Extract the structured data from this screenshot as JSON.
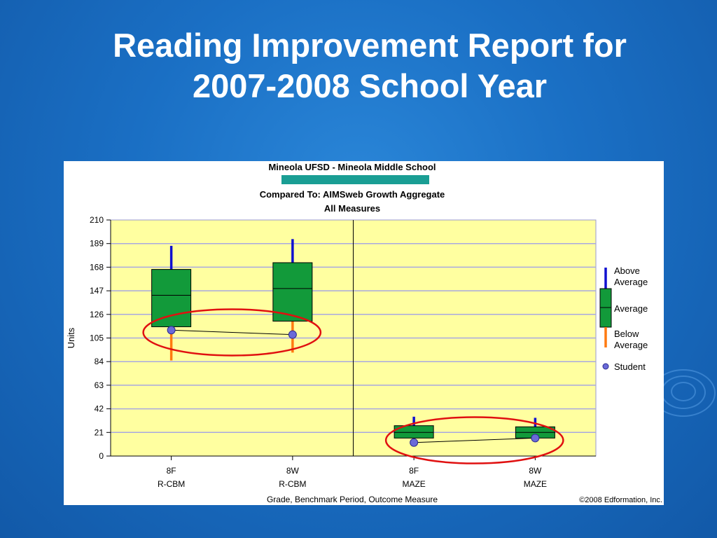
{
  "slide": {
    "title_line1": "Reading Improvement Report for",
    "title_line2": "2007-2008 School Year"
  },
  "chart_data": {
    "type": "boxplot",
    "header": {
      "line1": "Mineola UFSD - Mineola Middle School",
      "line2": "Compared To: AIMSweb Growth Aggregate",
      "line3": "All Measures"
    },
    "highlight_bar_color": "#1a9e94",
    "ylabel": "Units",
    "xlabel": "Grade, Benchmark Period, Outcome Measure",
    "ylim": [
      0,
      210
    ],
    "yticks": [
      0,
      21,
      42,
      63,
      84,
      105,
      126,
      147,
      168,
      189,
      210
    ],
    "grid": true,
    "plot_background": "#ffffa0",
    "copyright": "©2008 Edformation, Inc.",
    "categories": [
      {
        "line1": "8F",
        "line2": "R-CBM"
      },
      {
        "line1": "8W",
        "line2": "R-CBM"
      },
      {
        "line1": "8F",
        "line2": "MAZE"
      },
      {
        "line1": "8W",
        "line2": "MAZE"
      }
    ],
    "boxes": [
      {
        "whisker_low": 85,
        "box_low": 115,
        "median": 143,
        "box_high": 166,
        "whisker_high": 187,
        "student": 112
      },
      {
        "whisker_low": 92,
        "box_low": 120,
        "median": 149,
        "box_high": 172,
        "whisker_high": 193,
        "student": 108
      },
      {
        "whisker_low": 12,
        "box_low": 16,
        "median": 21,
        "box_high": 27,
        "whisker_high": 35,
        "student": 12
      },
      {
        "whisker_low": 13,
        "box_low": 16,
        "median": 21,
        "box_high": 26,
        "whisker_high": 34,
        "student": 16
      }
    ],
    "student_lines": [
      [
        0,
        1
      ],
      [
        2,
        3
      ]
    ],
    "divider_after_category": 1,
    "highlight_ellipse_color": "#e01010",
    "colors": {
      "above": "#1010d0",
      "average": "#129a3a",
      "below": "#ff7a10",
      "student": "#6a6ad8"
    },
    "legend": {
      "placement": "right",
      "above": "Above Average",
      "average": "Average",
      "below": "Below Average",
      "student": "Student"
    }
  }
}
